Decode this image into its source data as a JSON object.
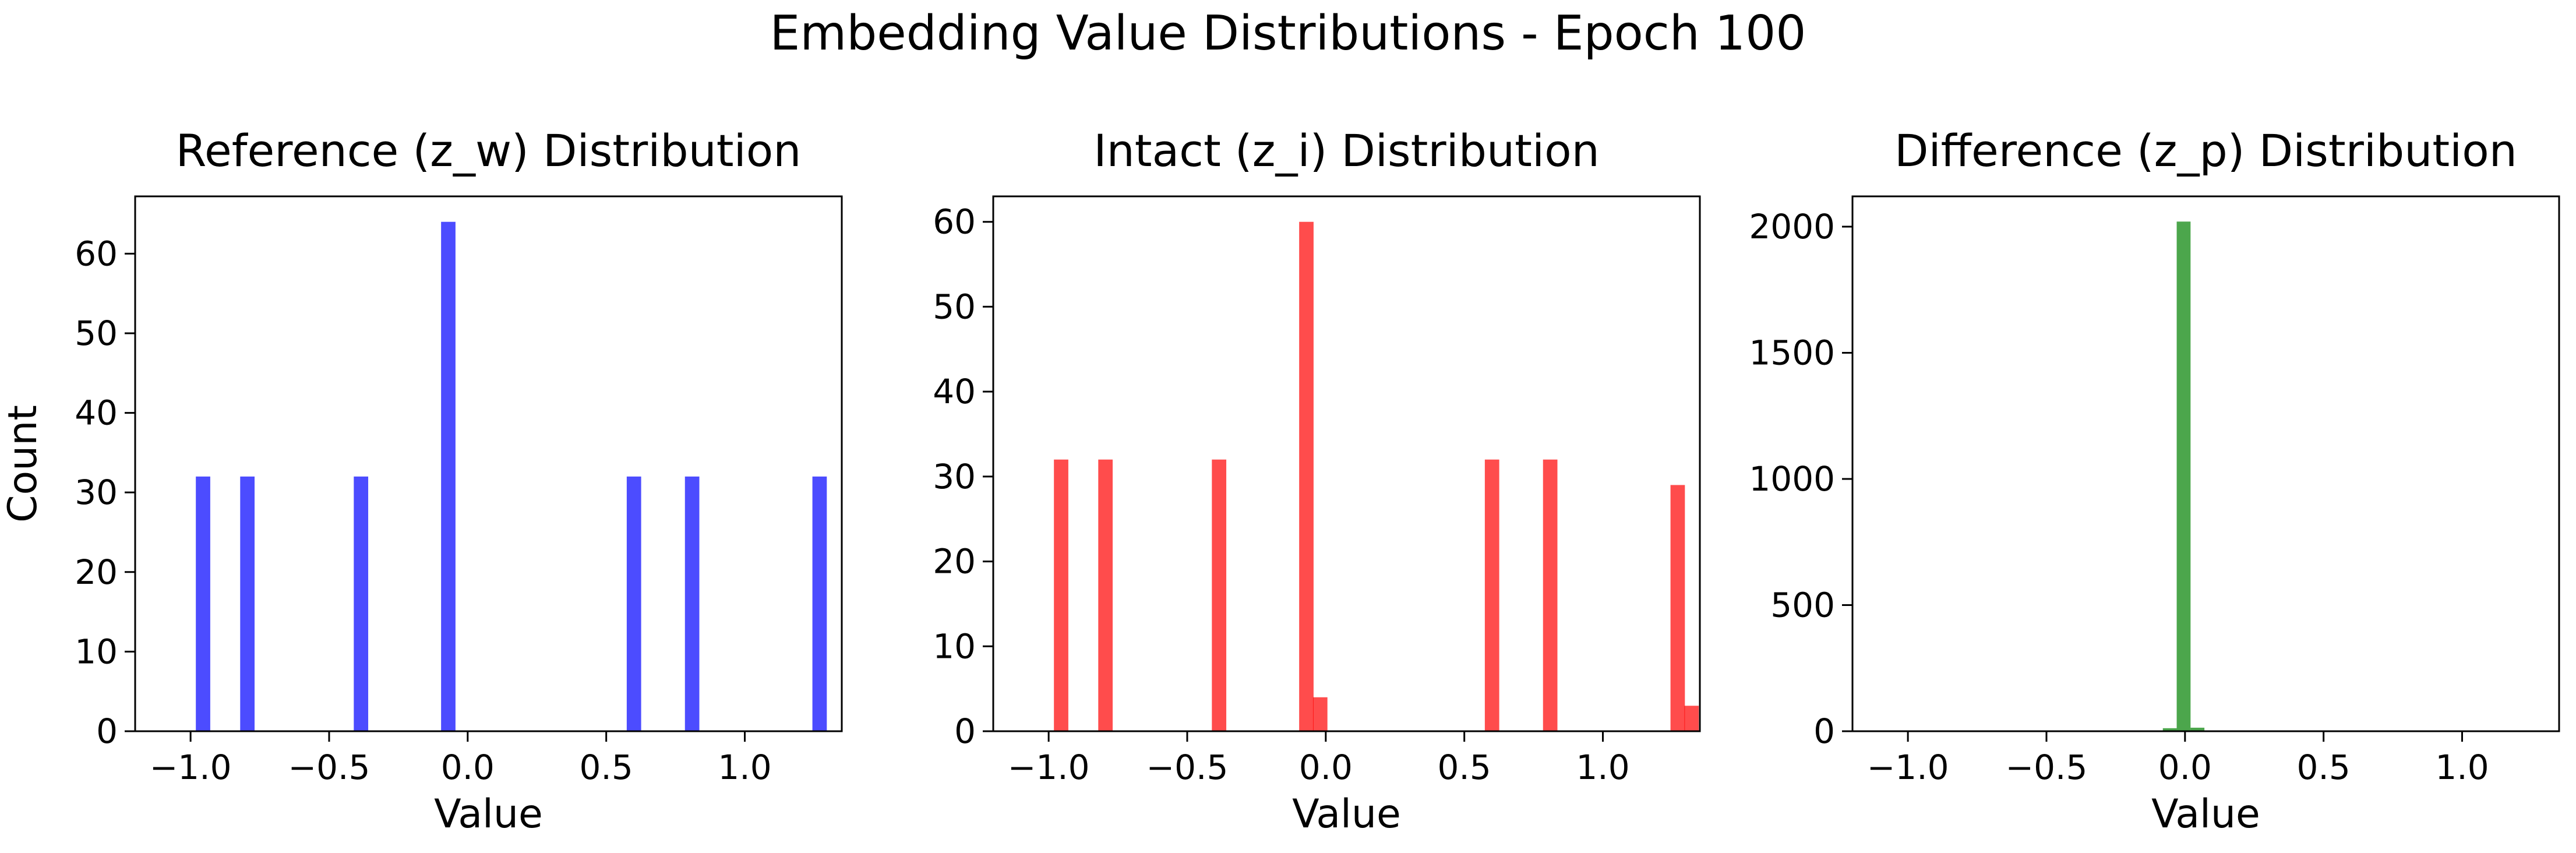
{
  "figure": {
    "suptitle": "Embedding Value Distributions - Epoch 100"
  },
  "chart_data": [
    {
      "type": "bar",
      "title": "Reference (z_w) Distribution",
      "xlabel": "Value",
      "ylabel": "Count",
      "xlim": [
        -1.2,
        1.35
      ],
      "ylim": [
        0,
        67.2
      ],
      "xticks": [
        -1.0,
        -0.5,
        0.0,
        0.5,
        1.0
      ],
      "xtick_labels": [
        "−1.0",
        "−0.5",
        "0.0",
        "0.5",
        "1.0"
      ],
      "yticks": [
        0,
        10,
        20,
        30,
        40,
        50,
        60
      ],
      "ytick_labels": [
        "0",
        "10",
        "20",
        "30",
        "40",
        "50",
        "60"
      ],
      "color": "#0000ff",
      "bin_width": 0.052,
      "bins": [
        {
          "x": -0.955,
          "count": 32
        },
        {
          "x": -0.795,
          "count": 32
        },
        {
          "x": -0.385,
          "count": 32
        },
        {
          "x": -0.07,
          "count": 64
        },
        {
          "x": 0.6,
          "count": 32
        },
        {
          "x": 0.81,
          "count": 32
        },
        {
          "x": 1.27,
          "count": 32
        }
      ]
    },
    {
      "type": "bar",
      "title": "Intact (z_i) Distribution",
      "xlabel": "Value",
      "ylabel": "",
      "xlim": [
        -1.2,
        1.35
      ],
      "ylim": [
        0,
        63
      ],
      "xticks": [
        -1.0,
        -0.5,
        0.0,
        0.5,
        1.0
      ],
      "xtick_labels": [
        "−1.0",
        "−0.5",
        "0.0",
        "0.5",
        "1.0"
      ],
      "yticks": [
        0,
        10,
        20,
        30,
        40,
        50,
        60
      ],
      "ytick_labels": [
        "0",
        "10",
        "20",
        "30",
        "40",
        "50",
        "60"
      ],
      "color": "#ff0000",
      "bin_width": 0.052,
      "bins": [
        {
          "x": -0.955,
          "count": 32
        },
        {
          "x": -0.795,
          "count": 32
        },
        {
          "x": -0.385,
          "count": 32
        },
        {
          "x": -0.07,
          "count": 60
        },
        {
          "x": -0.02,
          "count": 4
        },
        {
          "x": 0.6,
          "count": 32
        },
        {
          "x": 0.81,
          "count": 32
        },
        {
          "x": 1.27,
          "count": 29
        },
        {
          "x": 1.32,
          "count": 3
        }
      ]
    },
    {
      "type": "bar",
      "title": "Difference (z_p) Distribution",
      "xlabel": "Value",
      "ylabel": "",
      "xlim": [
        -1.2,
        1.35
      ],
      "ylim": [
        0,
        2120
      ],
      "xticks": [
        -1.0,
        -0.5,
        0.0,
        0.5,
        1.0
      ],
      "xtick_labels": [
        "−1.0",
        "−0.5",
        "0.0",
        "0.5",
        "1.0"
      ],
      "yticks": [
        0,
        500,
        1000,
        1500,
        2000
      ],
      "ytick_labels": [
        "0",
        "500",
        "1000",
        "1500",
        "2000"
      ],
      "color": "#008000",
      "bin_width": 0.05,
      "bins": [
        {
          "x": -0.055,
          "count": 12
        },
        {
          "x": -0.005,
          "count": 2020
        },
        {
          "x": 0.045,
          "count": 14
        }
      ]
    }
  ]
}
